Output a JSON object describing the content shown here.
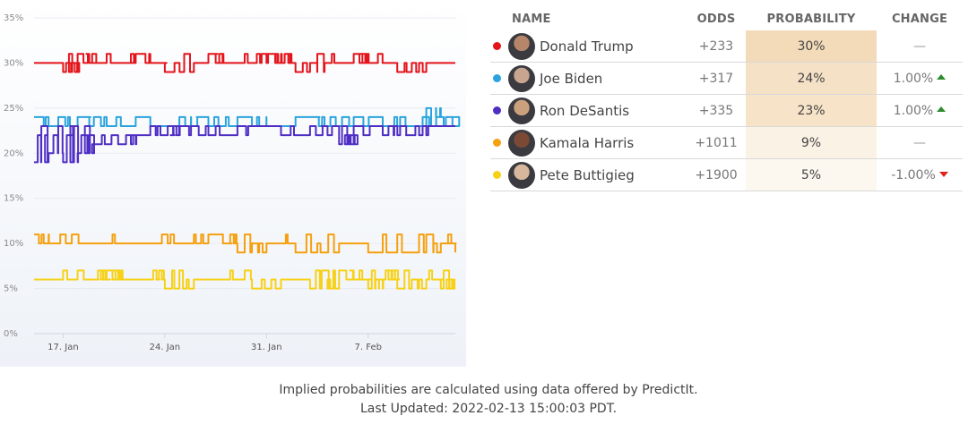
{
  "chart_data": {
    "type": "line",
    "ylim": [
      0,
      35
    ],
    "yticks": [
      "0%",
      "5%",
      "10%",
      "15%",
      "20%",
      "25%",
      "30%",
      "35%"
    ],
    "xticks": [
      "17. Jan",
      "24. Jan",
      "31. Jan",
      "7. Feb"
    ],
    "x_range": [
      "2022-01-15",
      "2022-02-13"
    ],
    "grid": "horizontal",
    "series": [
      {
        "name": "Donald Trump",
        "color": "#e3141b",
        "base": 30,
        "alt": 31,
        "points": [
          [
            "2022-01-15",
            30
          ],
          [
            "2022-01-17",
            29
          ],
          [
            "2022-01-18",
            31
          ],
          [
            "2022-01-19",
            30
          ],
          [
            "2022-01-21",
            30
          ],
          [
            "2022-01-22",
            31
          ],
          [
            "2022-01-23",
            30
          ],
          [
            "2022-01-24",
            29
          ],
          [
            "2022-01-26",
            30
          ],
          [
            "2022-01-27",
            31
          ],
          [
            "2022-01-28",
            30
          ],
          [
            "2022-01-30",
            30
          ],
          [
            "2022-01-31",
            31
          ],
          [
            "2022-02-01",
            30
          ],
          [
            "2022-02-02",
            29
          ],
          [
            "2022-02-04",
            30
          ],
          [
            "2022-02-06",
            31
          ],
          [
            "2022-02-07",
            30
          ],
          [
            "2022-02-09",
            29
          ],
          [
            "2022-02-11",
            30
          ],
          [
            "2022-02-13",
            30
          ]
        ]
      },
      {
        "name": "Joe Biden",
        "color": "#2ba3dd",
        "base": 24,
        "alt": 23,
        "points": [
          [
            "2022-01-15",
            24
          ],
          [
            "2022-01-16",
            23
          ],
          [
            "2022-01-18",
            24
          ],
          [
            "2022-01-20",
            23
          ],
          [
            "2022-01-22",
            24
          ],
          [
            "2022-01-23",
            23
          ],
          [
            "2022-01-25",
            24
          ],
          [
            "2022-01-27",
            23
          ],
          [
            "2022-01-29",
            24
          ],
          [
            "2022-01-31",
            23
          ],
          [
            "2022-02-02",
            24
          ],
          [
            "2022-02-04",
            23
          ],
          [
            "2022-02-06",
            24
          ],
          [
            "2022-02-08",
            23
          ],
          [
            "2022-02-10",
            23
          ],
          [
            "2022-02-11",
            25
          ],
          [
            "2022-02-12",
            24
          ],
          [
            "2022-02-13",
            24
          ]
        ]
      },
      {
        "name": "Ron DeSantis",
        "color": "#4f2ec4",
        "base": 23,
        "alt": 22,
        "points": [
          [
            "2022-01-15",
            19
          ],
          [
            "2022-01-16",
            20
          ],
          [
            "2022-01-17",
            19
          ],
          [
            "2022-01-18",
            20
          ],
          [
            "2022-01-19",
            21
          ],
          [
            "2022-01-21",
            21
          ],
          [
            "2022-01-22",
            22
          ],
          [
            "2022-01-24",
            22
          ],
          [
            "2022-01-25",
            23
          ],
          [
            "2022-01-27",
            22
          ],
          [
            "2022-01-29",
            23
          ],
          [
            "2022-02-01",
            22
          ],
          [
            "2022-02-03",
            23
          ],
          [
            "2022-02-05",
            21
          ],
          [
            "2022-02-06",
            23
          ],
          [
            "2022-02-08",
            22
          ],
          [
            "2022-02-10",
            22
          ],
          [
            "2022-02-11",
            23
          ],
          [
            "2022-02-13",
            23
          ]
        ]
      },
      {
        "name": "Kamala Harris",
        "color": "#f5a00f",
        "base": 10,
        "alt": 11,
        "points": [
          [
            "2022-01-15",
            11
          ],
          [
            "2022-01-16",
            10
          ],
          [
            "2022-01-20",
            10
          ],
          [
            "2022-01-22",
            10
          ],
          [
            "2022-01-25",
            10
          ],
          [
            "2022-01-27",
            11
          ],
          [
            "2022-01-28",
            10
          ],
          [
            "2022-01-29",
            9
          ],
          [
            "2022-01-31",
            10
          ],
          [
            "2022-02-02",
            9
          ],
          [
            "2022-02-05",
            10
          ],
          [
            "2022-02-07",
            9
          ],
          [
            "2022-02-10",
            9
          ],
          [
            "2022-02-12",
            10
          ],
          [
            "2022-02-13",
            9
          ]
        ]
      },
      {
        "name": "Pete Buttigieg",
        "color": "#f7d116",
        "base": 6,
        "alt": 7,
        "points": [
          [
            "2022-01-15",
            6
          ],
          [
            "2022-01-19",
            6
          ],
          [
            "2022-01-20",
            7
          ],
          [
            "2022-01-21",
            6
          ],
          [
            "2022-01-23",
            6
          ],
          [
            "2022-01-24",
            5
          ],
          [
            "2022-01-26",
            6
          ],
          [
            "2022-01-28",
            6
          ],
          [
            "2022-01-30",
            5
          ],
          [
            "2022-02-01",
            6
          ],
          [
            "2022-02-03",
            5
          ],
          [
            "2022-02-05",
            7
          ],
          [
            "2022-02-06",
            6
          ],
          [
            "2022-02-07",
            5
          ],
          [
            "2022-02-08",
            6
          ],
          [
            "2022-02-09",
            5
          ],
          [
            "2022-02-11",
            6
          ],
          [
            "2022-02-12",
            5
          ],
          [
            "2022-02-13",
            5
          ]
        ]
      }
    ]
  },
  "table": {
    "headers": {
      "name": "NAME",
      "odds": "ODDS",
      "probability": "PROBABILITY",
      "change": "CHANGE"
    },
    "rows": [
      {
        "name": "Donald Trump",
        "color": "#e3141b",
        "odds": "+233",
        "probability": "30%",
        "prob_value": 30,
        "change": "—",
        "direction": "none",
        "avatar_color": "#b5866a"
      },
      {
        "name": "Joe Biden",
        "color": "#2ba3dd",
        "odds": "+317",
        "probability": "24%",
        "prob_value": 24,
        "change": "1.00%",
        "direction": "up",
        "avatar_color": "#c7a58e"
      },
      {
        "name": "Ron DeSantis",
        "color": "#4f2ec4",
        "odds": "+335",
        "probability": "23%",
        "prob_value": 23,
        "change": "1.00%",
        "direction": "up",
        "avatar_color": "#caa17c"
      },
      {
        "name": "Kamala Harris",
        "color": "#f5a00f",
        "odds": "+1011",
        "probability": "9%",
        "prob_value": 9,
        "change": "—",
        "direction": "none",
        "avatar_color": "#7a4a34"
      },
      {
        "name": "Pete Buttigieg",
        "color": "#f7d116",
        "odds": "+1900",
        "probability": "5%",
        "prob_value": 5,
        "change": "-1.00%",
        "direction": "down",
        "avatar_color": "#d8b89c"
      }
    ]
  },
  "footer": {
    "line1": "Implied probabilities are calculated using data offered by PredictIt.",
    "line2": "Last Updated: 2022-02-13 15:00:03 PDT."
  }
}
